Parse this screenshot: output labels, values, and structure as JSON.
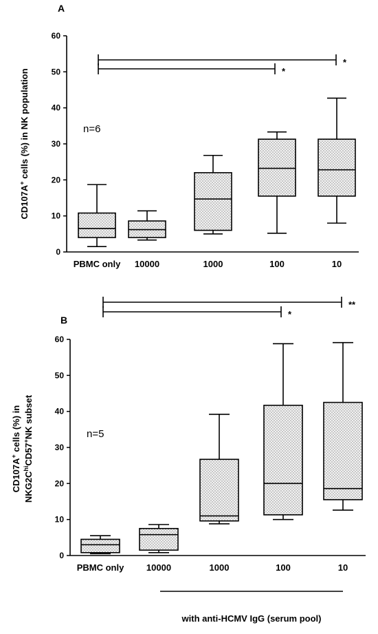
{
  "chart_data": [
    {
      "type": "box",
      "panel_label": "A",
      "ylabel_parts": [
        "CD107A",
        "+",
        " cells (%) in NK population"
      ],
      "n_label": "n=6",
      "ylim": [
        0,
        60
      ],
      "yticks": [
        0,
        10,
        20,
        30,
        40,
        50,
        60
      ],
      "categories": [
        "PBMC only",
        "10000",
        "1000",
        "100",
        "10"
      ],
      "boxes": [
        {
          "min": 1.5,
          "q1": 4.0,
          "median": 6.5,
          "q3": 10.8,
          "max": 18.7
        },
        {
          "min": 3.3,
          "q1": 4.0,
          "median": 6.2,
          "q3": 8.6,
          "max": 11.4
        },
        {
          "min": 5.0,
          "q1": 6.0,
          "median": 14.7,
          "q3": 22.0,
          "max": 26.8
        },
        {
          "min": 5.2,
          "q1": 15.5,
          "median": 23.2,
          "q3": 31.3,
          "max": 33.3
        },
        {
          "min": 8.0,
          "q1": 15.5,
          "median": 22.8,
          "q3": 31.3,
          "max": 42.7
        }
      ],
      "significance": [
        {
          "from": "PBMC only",
          "to": "100",
          "label": "*"
        },
        {
          "from": "PBMC only",
          "to": "10",
          "label": "*"
        }
      ]
    },
    {
      "type": "box",
      "panel_label": "B",
      "ylabel_line1_parts": [
        "CD107A",
        "+",
        " cells (%) in"
      ],
      "ylabel_line2_parts": [
        "NKG2C",
        "hi",
        "CD57",
        "+",
        "NK subset"
      ],
      "n_label": "n=5",
      "ylim": [
        0,
        60
      ],
      "yticks": [
        0,
        10,
        20,
        30,
        40,
        50,
        60
      ],
      "categories": [
        "PBMC only",
        "10000",
        "1000",
        "100",
        "10"
      ],
      "boxes": [
        {
          "min": 0.5,
          "q1": 0.8,
          "median": 3.0,
          "q3": 4.5,
          "max": 5.5
        },
        {
          "min": 0.8,
          "q1": 1.5,
          "median": 5.8,
          "q3": 7.5,
          "max": 8.6
        },
        {
          "min": 8.8,
          "q1": 9.6,
          "median": 11.0,
          "q3": 26.7,
          "max": 39.2
        },
        {
          "min": 10.0,
          "q1": 11.3,
          "median": 20.0,
          "q3": 41.7,
          "max": 58.8
        },
        {
          "min": 12.6,
          "q1": 15.5,
          "median": 18.6,
          "q3": 42.5,
          "max": 59.1
        }
      ],
      "significance": [
        {
          "from": "PBMC only",
          "to": "100",
          "label": "*"
        },
        {
          "from": "PBMC only",
          "to": "10",
          "label": "**"
        }
      ]
    }
  ],
  "footer": {
    "group_label": "with anti-HCMV IgG (serum pool)"
  }
}
